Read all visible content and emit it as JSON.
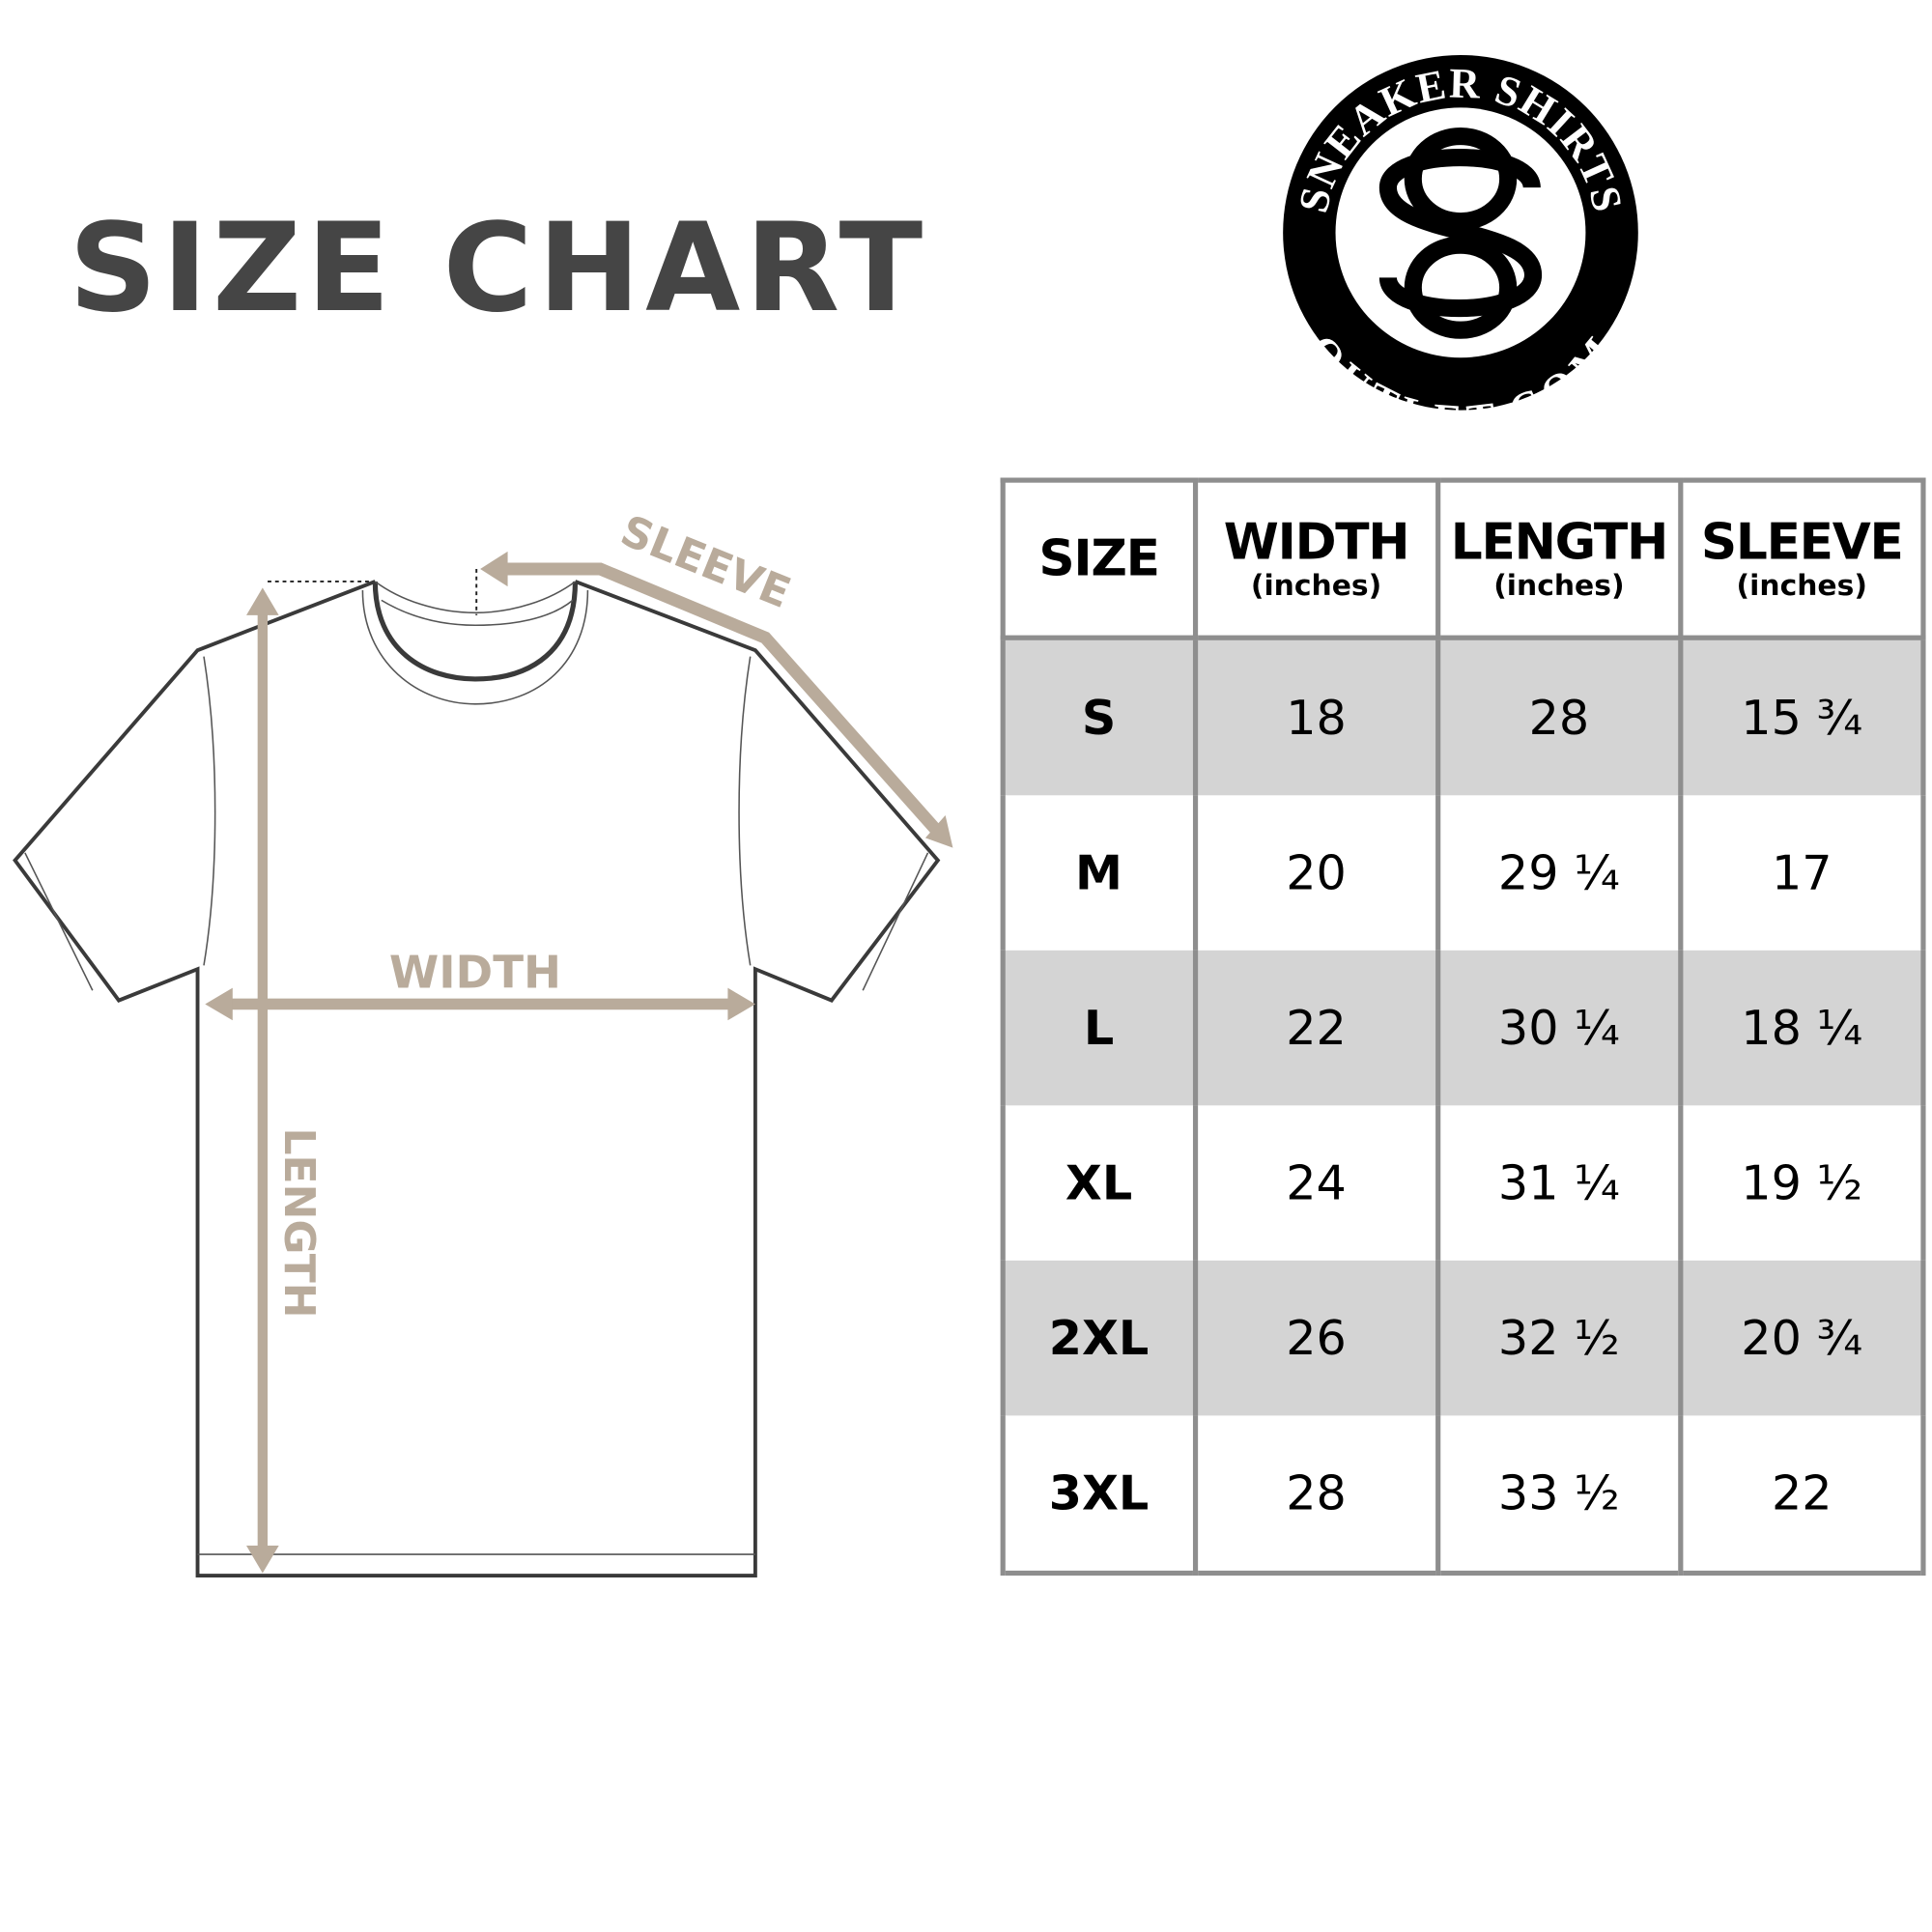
{
  "title": "SIZE CHART",
  "logo": {
    "top_text": "SNEAKER SHIRTS",
    "bottom_text": "OUTLET.COM",
    "monogram": "SO"
  },
  "diagram": {
    "sleeve_label": "SLEEVE",
    "width_label": "WIDTH",
    "length_label": "LENGTH"
  },
  "colors": {
    "title": "#454545",
    "measure": "#b9ab9b",
    "grid": "#8e8e8e",
    "shade": "#d4d4d4"
  },
  "table": {
    "headers": [
      {
        "label": "SIZE",
        "unit": ""
      },
      {
        "label": "WIDTH",
        "unit": "(inches)"
      },
      {
        "label": "LENGTH",
        "unit": "(inches)"
      },
      {
        "label": "SLEEVE",
        "unit": "(inches)"
      }
    ],
    "rows": [
      [
        "S",
        "18",
        "28",
        "15 ¾"
      ],
      [
        "M",
        "20",
        "29 ¼",
        "17"
      ],
      [
        "L",
        "22",
        "30 ¼",
        "18 ¼"
      ],
      [
        "XL",
        "24",
        "31 ¼",
        "19 ½"
      ],
      [
        "2XL",
        "26",
        "32 ½",
        "20 ¾"
      ],
      [
        "3XL",
        "28",
        "33 ½",
        "22"
      ]
    ]
  }
}
